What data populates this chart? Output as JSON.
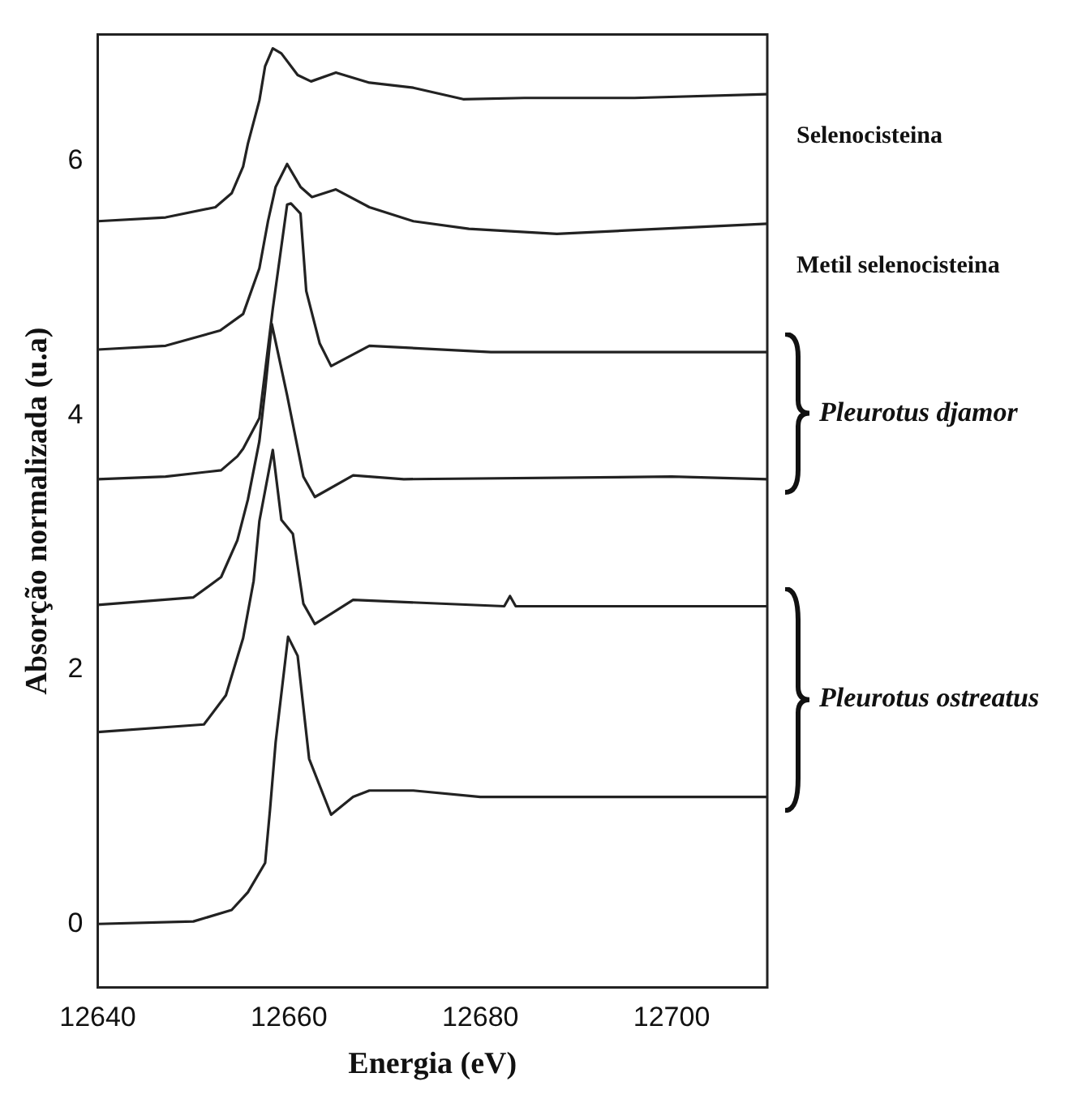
{
  "chart_data": {
    "type": "line",
    "xlabel": "Energia (eV)",
    "ylabel": "Absorção normalizada (u.a)",
    "xlim": [
      12640,
      12710
    ],
    "ylim": [
      -0.5,
      7
    ],
    "xticks": [
      12640,
      12660,
      12680,
      12700
    ],
    "yticks": [
      0,
      2,
      4,
      6
    ],
    "grid": false,
    "legend": false,
    "marker": "none",
    "line_style": "solid",
    "series": [
      {
        "name": "Selenocisteina",
        "color": "#222222",
        "x": [
          12640,
          12647.1,
          12652.3,
          12654.0,
          12655.2,
          12655.7,
          12656.9,
          12657.5,
          12658.3,
          12659.2,
          12660.9,
          12662.3,
          12664.9,
          12668.4,
          12673.0,
          12678.2,
          12684.6,
          12696.1,
          12710
        ],
        "values": [
          5.53,
          5.56,
          5.64,
          5.75,
          5.96,
          6.14,
          6.48,
          6.75,
          6.89,
          6.85,
          6.68,
          6.63,
          6.7,
          6.62,
          6.58,
          6.49,
          6.5,
          6.5,
          6.53
        ]
      },
      {
        "name": "Metil selenocisteina",
        "color": "#222222",
        "x": [
          12640,
          12647.1,
          12652.8,
          12655.2,
          12656.9,
          12657.8,
          12658.6,
          12659.8,
          12661.2,
          12662.4,
          12664.9,
          12668.4,
          12673.0,
          12678.8,
          12688.0,
          12696.1,
          12710
        ],
        "values": [
          4.52,
          4.55,
          4.67,
          4.8,
          5.16,
          5.53,
          5.8,
          5.98,
          5.8,
          5.72,
          5.78,
          5.64,
          5.53,
          5.47,
          5.43,
          5.46,
          5.51
        ]
      },
      {
        "color": "#222222",
        "x": [
          12640,
          12647.1,
          12652.9,
          12654.6,
          12655.2,
          12656.9,
          12658.3,
          12659.8,
          12660.2,
          12661.2,
          12661.8,
          12663.2,
          12664.4,
          12668.4,
          12681.1,
          12710
        ],
        "values": [
          3.5,
          3.52,
          3.57,
          3.68,
          3.74,
          3.98,
          4.84,
          5.66,
          5.67,
          5.59,
          4.98,
          4.57,
          4.39,
          4.55,
          4.5,
          4.5
        ]
      },
      {
        "color": "#222222",
        "x": [
          12640,
          12650.0,
          12652.9,
          12654.6,
          12655.7,
          12656.9,
          12657.5,
          12658.2,
          12659.8,
          12661.5,
          12662.7,
          12666.7,
          12672.0,
          12700.0,
          12710
        ],
        "values": [
          2.51,
          2.57,
          2.73,
          3.02,
          3.34,
          3.8,
          4.2,
          4.72,
          4.16,
          3.52,
          3.36,
          3.53,
          3.5,
          3.52,
          3.5
        ]
      },
      {
        "color": "#222222",
        "x": [
          12640,
          12651.1,
          12653.4,
          12655.2,
          12656.3,
          12656.9,
          12658.3,
          12659.2,
          12660.4,
          12661.5,
          12662.7,
          12666.7,
          12682.5,
          12683.1,
          12683.7,
          12710
        ],
        "values": [
          1.51,
          1.57,
          1.8,
          2.25,
          2.7,
          3.17,
          3.73,
          3.18,
          3.07,
          2.52,
          2.36,
          2.55,
          2.5,
          2.58,
          2.5,
          2.5
        ]
      },
      {
        "color": "#222222",
        "x": [
          12640,
          12650.0,
          12654.0,
          12655.7,
          12657.5,
          12658.0,
          12658.6,
          12659.9,
          12660.9,
          12662.1,
          12664.4,
          12666.7,
          12668.4,
          12673.0,
          12680.0,
          12710
        ],
        "values": [
          0,
          0.02,
          0.11,
          0.25,
          0.48,
          0.89,
          1.43,
          2.26,
          2.11,
          1.3,
          0.86,
          1.0,
          1.05,
          1.05,
          1.0,
          1.0
        ]
      }
    ],
    "annotations": [
      "Pleurotus djamor",
      "Pleurotus ostreatus"
    ]
  }
}
